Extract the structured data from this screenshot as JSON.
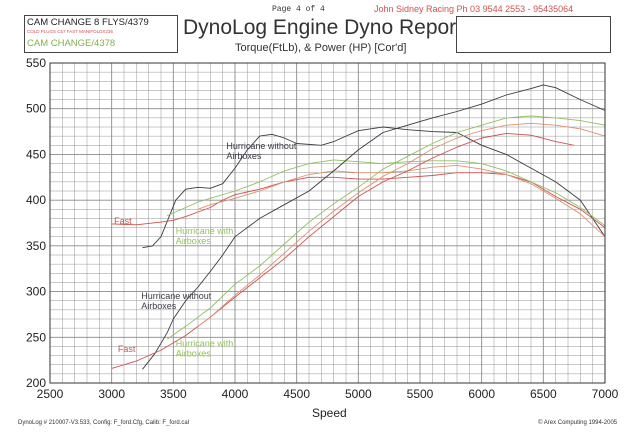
{
  "header": {
    "run1_title": "CAM CHANGE 8 FLYS/4379",
    "run1_note": "COLD PLUGS  C57 FAST MANIFOLDX236",
    "run2_title": "CAM CHANGE/4378",
    "report_title": "DynoLog Engine Dyno Report",
    "subtitle": "Torque(FtLb), & Power (HP) [Cor'd]",
    "page_label": "Page 4 of 4",
    "company": "John Sidney Racing  Ph 03 9544 2553 - 95435064"
  },
  "footer": {
    "config": "DynoLog # 210007-V3.533, Config: F_ford.Cfg, Calib: F_ford.cal",
    "copyright": "© Arex Computing 1994-2005"
  },
  "colors": {
    "black_run": "#3a3a44",
    "red_run": "#d05050",
    "green_run": "#90c060",
    "salmon_run": "#e09070",
    "grid": "#8a8a8a"
  },
  "chart_data": {
    "type": "line",
    "title": "DynoLog Engine Dyno Report",
    "subtitle": "Torque(FtLb), & Power (HP) [Cor'd]",
    "xlabel": "Speed",
    "ylabel": "",
    "xlim": [
      2500,
      7000
    ],
    "ylim": [
      200,
      550
    ],
    "grid": true,
    "x_ticks": [
      2500,
      3000,
      3500,
      4000,
      4500,
      5000,
      5500,
      6000,
      6500,
      7000
    ],
    "y_ticks": [
      200,
      250,
      300,
      350,
      400,
      450,
      500,
      550
    ],
    "annotations": [
      {
        "text": "Hurricane without",
        "text2": "Airboxes",
        "x": 3930,
        "y": 456,
        "color": "black_run"
      },
      {
        "text": "Fast",
        "text2": "",
        "x": 3020,
        "y": 374,
        "color": "red_run"
      },
      {
        "text": "Hurricane with",
        "text2": "Airboxes",
        "x": 3520,
        "y": 363,
        "color": "green_run"
      },
      {
        "text": "Hurricane without",
        "text2": "Airboxes",
        "x": 3240,
        "y": 292,
        "color": "black_run"
      },
      {
        "text": "Fast",
        "text2": "",
        "x": 3050,
        "y": 234,
        "color": "red_run"
      },
      {
        "text": "Hurricane with",
        "text2": "Airboxes",
        "x": 3520,
        "y": 240,
        "color": "green_run"
      }
    ],
    "series": [
      {
        "group": "torque",
        "color": "black_run",
        "points": [
          [
            3250,
            348
          ],
          [
            3330,
            350
          ],
          [
            3400,
            360
          ],
          [
            3460,
            380
          ],
          [
            3520,
            400
          ],
          [
            3600,
            412
          ],
          [
            3700,
            414
          ],
          [
            3800,
            413
          ],
          [
            3900,
            418
          ],
          [
            4000,
            435
          ],
          [
            4100,
            455
          ],
          [
            4200,
            470
          ],
          [
            4300,
            472
          ],
          [
            4400,
            468
          ],
          [
            4500,
            462
          ],
          [
            4700,
            460
          ],
          [
            4800,
            464
          ],
          [
            4900,
            470
          ],
          [
            5000,
            476
          ],
          [
            5200,
            480
          ],
          [
            5400,
            477
          ],
          [
            5600,
            475
          ],
          [
            5800,
            474
          ],
          [
            6000,
            460
          ],
          [
            6200,
            450
          ],
          [
            6400,
            435
          ],
          [
            6600,
            420
          ],
          [
            6800,
            400
          ],
          [
            7000,
            360
          ]
        ]
      },
      {
        "group": "torque",
        "color": "red_run",
        "points": [
          [
            3000,
            374
          ],
          [
            3200,
            373
          ],
          [
            3400,
            376
          ],
          [
            3500,
            378
          ],
          [
            3600,
            382
          ],
          [
            3700,
            387
          ],
          [
            3800,
            392
          ],
          [
            3900,
            400
          ],
          [
            4000,
            406
          ],
          [
            4200,
            412
          ],
          [
            4400,
            420
          ],
          [
            4600,
            425
          ],
          [
            4800,
            425
          ],
          [
            5000,
            423
          ],
          [
            5200,
            423
          ],
          [
            5400,
            425
          ],
          [
            5600,
            427
          ],
          [
            5800,
            430
          ],
          [
            6000,
            430
          ],
          [
            6200,
            428
          ],
          [
            6400,
            420
          ],
          [
            6600,
            404
          ],
          [
            6800,
            390
          ],
          [
            7000,
            370
          ]
        ]
      },
      {
        "group": "torque",
        "color": "green_run",
        "points": [
          [
            3450,
            383
          ],
          [
            3500,
            386
          ],
          [
            3600,
            392
          ],
          [
            3700,
            398
          ],
          [
            3800,
            402
          ],
          [
            4000,
            410
          ],
          [
            4200,
            420
          ],
          [
            4400,
            432
          ],
          [
            4600,
            440
          ],
          [
            4800,
            444
          ],
          [
            5000,
            442
          ],
          [
            5200,
            440
          ],
          [
            5400,
            442
          ],
          [
            5600,
            443
          ],
          [
            5800,
            443
          ],
          [
            6000,
            440
          ],
          [
            6200,
            432
          ],
          [
            6400,
            420
          ],
          [
            6600,
            408
          ],
          [
            6800,
            392
          ],
          [
            7000,
            372
          ]
        ]
      },
      {
        "group": "torque",
        "color": "salmon_run",
        "points": [
          [
            3700,
            390
          ],
          [
            3800,
            395
          ],
          [
            4000,
            402
          ],
          [
            4200,
            410
          ],
          [
            4400,
            420
          ],
          [
            4600,
            428
          ],
          [
            4800,
            432
          ],
          [
            5000,
            430
          ],
          [
            5200,
            430
          ],
          [
            5400,
            432
          ],
          [
            5600,
            436
          ],
          [
            5800,
            438
          ],
          [
            6000,
            434
          ],
          [
            6200,
            428
          ],
          [
            6400,
            418
          ],
          [
            6600,
            402
          ],
          [
            6800,
            385
          ],
          [
            7000,
            360
          ]
        ]
      },
      {
        "group": "power",
        "color": "black_run",
        "points": [
          [
            3250,
            215
          ],
          [
            3350,
            232
          ],
          [
            3450,
            255
          ],
          [
            3500,
            270
          ],
          [
            3600,
            290
          ],
          [
            3700,
            305
          ],
          [
            3800,
            322
          ],
          [
            3900,
            340
          ],
          [
            4000,
            360
          ],
          [
            4200,
            380
          ],
          [
            4400,
            395
          ],
          [
            4600,
            410
          ],
          [
            4800,
            432
          ],
          [
            5000,
            455
          ],
          [
            5200,
            474
          ],
          [
            5400,
            482
          ],
          [
            5600,
            490
          ],
          [
            5800,
            497
          ],
          [
            6000,
            505
          ],
          [
            6200,
            515
          ],
          [
            6400,
            522
          ],
          [
            6500,
            526
          ],
          [
            6600,
            523
          ],
          [
            6800,
            510
          ],
          [
            7000,
            498
          ]
        ]
      },
      {
        "group": "power",
        "color": "red_run",
        "points": [
          [
            3000,
            216
          ],
          [
            3200,
            224
          ],
          [
            3400,
            236
          ],
          [
            3600,
            252
          ],
          [
            3800,
            272
          ],
          [
            4000,
            294
          ],
          [
            4200,
            315
          ],
          [
            4400,
            336
          ],
          [
            4600,
            360
          ],
          [
            4800,
            382
          ],
          [
            5000,
            404
          ],
          [
            5200,
            420
          ],
          [
            5400,
            432
          ],
          [
            5600,
            446
          ],
          [
            5800,
            458
          ],
          [
            6000,
            468
          ],
          [
            6200,
            473
          ],
          [
            6400,
            471
          ],
          [
            6600,
            464
          ],
          [
            6750,
            460
          ]
        ]
      },
      {
        "group": "power",
        "color": "green_run",
        "points": [
          [
            3450,
            248
          ],
          [
            3600,
            262
          ],
          [
            3800,
            282
          ],
          [
            4000,
            308
          ],
          [
            4200,
            328
          ],
          [
            4400,
            352
          ],
          [
            4600,
            376
          ],
          [
            4800,
            396
          ],
          [
            5000,
            414
          ],
          [
            5200,
            434
          ],
          [
            5400,
            448
          ],
          [
            5600,
            462
          ],
          [
            5800,
            474
          ],
          [
            6000,
            482
          ],
          [
            6200,
            490
          ],
          [
            6400,
            492
          ],
          [
            6600,
            490
          ],
          [
            6800,
            487
          ],
          [
            7000,
            482
          ]
        ]
      },
      {
        "group": "power",
        "color": "salmon_run",
        "points": [
          [
            3700,
            262
          ],
          [
            3800,
            272
          ],
          [
            4000,
            296
          ],
          [
            4200,
            318
          ],
          [
            4400,
            342
          ],
          [
            4600,
            366
          ],
          [
            4800,
            388
          ],
          [
            5000,
            408
          ],
          [
            5200,
            426
          ],
          [
            5400,
            440
          ],
          [
            5600,
            456
          ],
          [
            5800,
            468
          ],
          [
            6000,
            476
          ],
          [
            6200,
            482
          ],
          [
            6400,
            484
          ],
          [
            6600,
            482
          ],
          [
            6800,
            478
          ],
          [
            7000,
            470
          ]
        ]
      }
    ]
  }
}
